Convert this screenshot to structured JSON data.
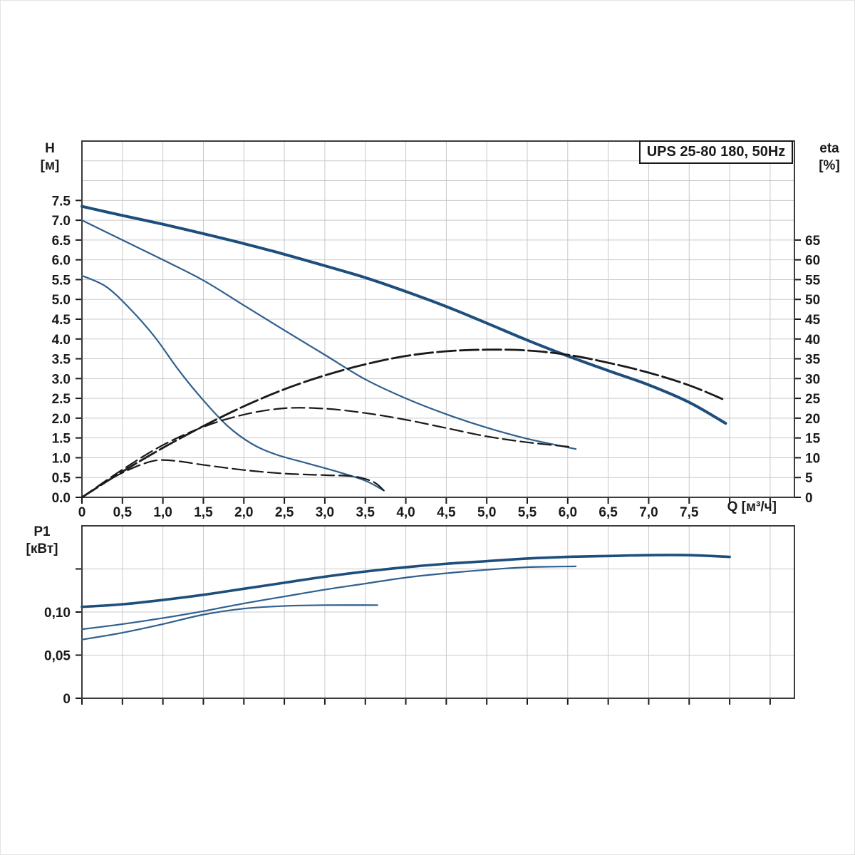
{
  "title_box": "UPS 25-80 180, 50Hz",
  "labels": {
    "h_line1": "H",
    "h_line2": "[м]",
    "eta_line1": "eta",
    "eta_line2": "[%]",
    "p1_line1": "P1",
    "p1_line2": "[кВт]",
    "q_axis": "Q [м³/ч]"
  },
  "colors": {
    "curve_blue_thick": "#1d4e7c",
    "curve_blue_thin": "#2f608f",
    "curve_black": "#1a1a1a",
    "grid": "#c9c9c9",
    "frame": "#3c3c3c",
    "text": "#1a1a1a",
    "background": "#ffffff"
  },
  "chart_data": [
    {
      "type": "line",
      "title": "UPS 25-80 180, 50Hz",
      "grid": true,
      "legend": "none",
      "x_axis": {
        "label": "Q [м³/ч]",
        "min": 0,
        "max": 8.8,
        "grid_step": 0.5,
        "tick_values": [
          0,
          0.5,
          1,
          1.5,
          2,
          2.5,
          3,
          3.5,
          4,
          4.5,
          5,
          5.5,
          6,
          6.5,
          7,
          7.5,
          8,
          8.5
        ],
        "tick_labels": [
          "0",
          "0,5",
          "1,0",
          "1,5",
          "2,0",
          "2,5",
          "3,0",
          "3,5",
          "4,0",
          "4,5",
          "5,0",
          "5,5",
          "6,0",
          "6,5",
          "7,0",
          "7,5",
          "",
          ""
        ]
      },
      "y_left": {
        "label": "H [м]",
        "min": 0,
        "max": 9,
        "grid_step": 0.5,
        "tick_values": [
          0,
          0.5,
          1,
          1.5,
          2,
          2.5,
          3,
          3.5,
          4,
          4.5,
          5,
          5.5,
          6,
          6.5,
          7,
          7.5
        ],
        "tick_labels": [
          "0.0",
          "0.5",
          "1.0",
          "1.5",
          "2.0",
          "2.5",
          "3.0",
          "3.5",
          "4.0",
          "4.5",
          "5.0",
          "5.5",
          "6.0",
          "6.5",
          "7.0",
          "7.5"
        ]
      },
      "y_right": {
        "label": "eta [%]",
        "min": 0,
        "max": 90,
        "tick_values": [
          0,
          5,
          10,
          15,
          20,
          25,
          30,
          35,
          40,
          45,
          50,
          55,
          60,
          65
        ],
        "tick_labels": [
          "0",
          "5",
          "10",
          "15",
          "20",
          "25",
          "30",
          "35",
          "40",
          "45",
          "50",
          "55",
          "60",
          "65"
        ]
      },
      "series": [
        {
          "name": "head-speed-3",
          "axis": "left",
          "color": "#1d4e7c",
          "width": 4,
          "dash": "",
          "points": [
            [
              0,
              7.35
            ],
            [
              0.5,
              7.12
            ],
            [
              1,
              6.9
            ],
            [
              1.5,
              6.66
            ],
            [
              2,
              6.41
            ],
            [
              2.5,
              6.14
            ],
            [
              3,
              5.85
            ],
            [
              3.5,
              5.55
            ],
            [
              4,
              5.2
            ],
            [
              4.5,
              4.82
            ],
            [
              5,
              4.4
            ],
            [
              5.5,
              3.97
            ],
            [
              6,
              3.57
            ],
            [
              6.5,
              3.2
            ],
            [
              7,
              2.84
            ],
            [
              7.5,
              2.4
            ],
            [
              7.95,
              1.87
            ]
          ]
        },
        {
          "name": "head-speed-2",
          "axis": "left",
          "color": "#2f608f",
          "width": 2.2,
          "dash": "",
          "points": [
            [
              0,
              7.0
            ],
            [
              0.5,
              6.5
            ],
            [
              1,
              6.0
            ],
            [
              1.5,
              5.48
            ],
            [
              2,
              4.85
            ],
            [
              2.5,
              4.22
            ],
            [
              3,
              3.6
            ],
            [
              3.5,
              2.98
            ],
            [
              4,
              2.5
            ],
            [
              4.5,
              2.1
            ],
            [
              5,
              1.76
            ],
            [
              5.5,
              1.48
            ],
            [
              6.1,
              1.22
            ]
          ]
        },
        {
          "name": "head-speed-1",
          "axis": "left",
          "color": "#2f608f",
          "width": 2.2,
          "dash": "",
          "points": [
            [
              0,
              5.6
            ],
            [
              0.3,
              5.32
            ],
            [
              0.6,
              4.75
            ],
            [
              0.9,
              4.05
            ],
            [
              1.2,
              3.2
            ],
            [
              1.5,
              2.45
            ],
            [
              1.8,
              1.8
            ],
            [
              2.1,
              1.35
            ],
            [
              2.4,
              1.08
            ],
            [
              2.8,
              0.85
            ],
            [
              3.2,
              0.62
            ],
            [
              3.5,
              0.42
            ],
            [
              3.73,
              0.17
            ]
          ]
        },
        {
          "name": "eta-speed-3",
          "axis": "right",
          "color": "#1a1a1a",
          "width": 2.8,
          "dash": "26 6",
          "points": [
            [
              0,
              0
            ],
            [
              0.5,
              6.5
            ],
            [
              1,
              12.5
            ],
            [
              1.5,
              18
            ],
            [
              2,
              23
            ],
            [
              2.5,
              27.3
            ],
            [
              3,
              30.8
            ],
            [
              3.5,
              33.6
            ],
            [
              4,
              35.7
            ],
            [
              4.5,
              36.9
            ],
            [
              5,
              37.3
            ],
            [
              5.5,
              37.1
            ],
            [
              6,
              36
            ],
            [
              6.5,
              34
            ],
            [
              7,
              31.5
            ],
            [
              7.5,
              28.3
            ],
            [
              7.95,
              24.5
            ]
          ]
        },
        {
          "name": "eta-speed-2",
          "axis": "right",
          "color": "#1a1a1a",
          "width": 2.2,
          "dash": "18 7",
          "points": [
            [
              0,
              0
            ],
            [
              0.5,
              7
            ],
            [
              1,
              13.2
            ],
            [
              1.5,
              17.8
            ],
            [
              2,
              20.9
            ],
            [
              2.5,
              22.5
            ],
            [
              3,
              22.4
            ],
            [
              3.5,
              21.3
            ],
            [
              4,
              19.6
            ],
            [
              4.5,
              17.5
            ],
            [
              5,
              15.4
            ],
            [
              5.5,
              13.9
            ],
            [
              6.05,
              12.7
            ]
          ]
        },
        {
          "name": "eta-speed-1",
          "axis": "right",
          "color": "#1a1a1a",
          "width": 2.2,
          "dash": "18 7",
          "points": [
            [
              0,
              0
            ],
            [
              0.25,
              3.4
            ],
            [
              0.5,
              6.2
            ],
            [
              0.75,
              8.4
            ],
            [
              0.95,
              9.4
            ],
            [
              1.2,
              9.1
            ],
            [
              1.5,
              8.2
            ],
            [
              2,
              6.9
            ],
            [
              2.5,
              6.0
            ],
            [
              3,
              5.6
            ],
            [
              3.35,
              5.3
            ],
            [
              3.6,
              3.9
            ],
            [
              3.73,
              1.7
            ]
          ]
        }
      ]
    },
    {
      "type": "line",
      "title": "",
      "grid": true,
      "legend": "none",
      "x_axis": {
        "label": "",
        "min": 0,
        "max": 8.8,
        "grid_step": 0.5,
        "tick_values": [
          0,
          0.5,
          1,
          1.5,
          2,
          2.5,
          3,
          3.5,
          4,
          4.5,
          5,
          5.5,
          6,
          6.5,
          7,
          7.5,
          8,
          8.5
        ]
      },
      "y_left": {
        "label": "P1 [кВт]",
        "min": 0,
        "max": 0.2,
        "grid_step": 0.05,
        "tick_values": [
          0,
          0.05,
          0.1,
          0.15
        ],
        "tick_labels": [
          "0",
          "0,05",
          "0,10",
          ""
        ]
      },
      "series": [
        {
          "name": "power-speed-3",
          "axis": "left",
          "color": "#1d4e7c",
          "width": 3.6,
          "dash": "",
          "points": [
            [
              0,
              0.106
            ],
            [
              0.5,
              0.109
            ],
            [
              1,
              0.114
            ],
            [
              1.5,
              0.12
            ],
            [
              2,
              0.127
            ],
            [
              2.5,
              0.134
            ],
            [
              3,
              0.141
            ],
            [
              3.5,
              0.147
            ],
            [
              4,
              0.152
            ],
            [
              4.5,
              0.156
            ],
            [
              5,
              0.159
            ],
            [
              5.5,
              0.162
            ],
            [
              6,
              0.164
            ],
            [
              6.5,
              0.165
            ],
            [
              7,
              0.166
            ],
            [
              7.5,
              0.166
            ],
            [
              8,
              0.164
            ]
          ]
        },
        {
          "name": "power-speed-2",
          "axis": "left",
          "color": "#2f608f",
          "width": 2.2,
          "dash": "",
          "points": [
            [
              0,
              0.08
            ],
            [
              0.5,
              0.086
            ],
            [
              1,
              0.093
            ],
            [
              1.5,
              0.101
            ],
            [
              2,
              0.11
            ],
            [
              2.5,
              0.118
            ],
            [
              3,
              0.126
            ],
            [
              3.5,
              0.133
            ],
            [
              4,
              0.14
            ],
            [
              4.5,
              0.145
            ],
            [
              5,
              0.149
            ],
            [
              5.5,
              0.152
            ],
            [
              6.1,
              0.153
            ]
          ]
        },
        {
          "name": "power-speed-1",
          "axis": "left",
          "color": "#2f608f",
          "width": 2.2,
          "dash": "",
          "points": [
            [
              0,
              0.068
            ],
            [
              0.5,
              0.076
            ],
            [
              1,
              0.086
            ],
            [
              1.5,
              0.097
            ],
            [
              2,
              0.104
            ],
            [
              2.5,
              0.107
            ],
            [
              3,
              0.108
            ],
            [
              3.65,
              0.108
            ]
          ]
        }
      ]
    }
  ]
}
